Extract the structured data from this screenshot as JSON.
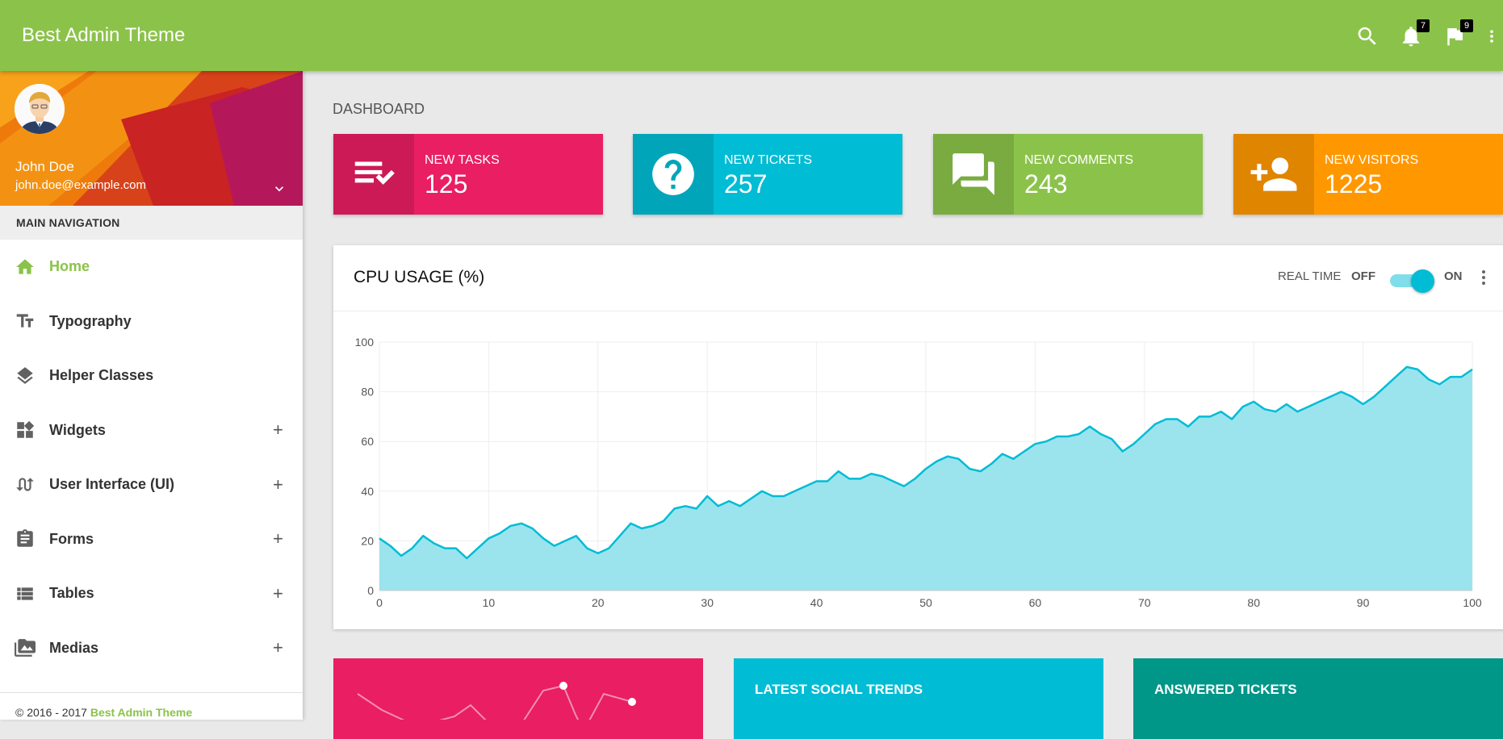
{
  "topbar": {
    "brand": "Best Admin Theme",
    "notifications_count": "7",
    "tasks_count": "9"
  },
  "user": {
    "name": "John Doe",
    "email": "john.doe@example.com"
  },
  "sidebar": {
    "header": "MAIN NAVIGATION",
    "items": [
      {
        "label": "Home",
        "icon": "home-icon",
        "active": true
      },
      {
        "label": "Typography",
        "icon": "text-fields-icon"
      },
      {
        "label": "Helper Classes",
        "icon": "layers-icon"
      },
      {
        "label": "Widgets",
        "icon": "widgets-icon",
        "expand": "+"
      },
      {
        "label": "User Interface (UI)",
        "icon": "swap-calls-icon",
        "expand": "+"
      },
      {
        "label": "Forms",
        "icon": "assignment-icon",
        "expand": "+"
      },
      {
        "label": "Tables",
        "icon": "view-list-icon",
        "expand": "+"
      },
      {
        "label": "Medias",
        "icon": "perm-media-icon",
        "expand": "+"
      }
    ],
    "footer_prefix": "© 2016 - 2017 ",
    "footer_link": "Best Admin Theme"
  },
  "page": {
    "title": "DASHBOARD"
  },
  "info_boxes": [
    {
      "label": "NEW TASKS",
      "value": "125",
      "color": "#e91e63",
      "icon": "playlist-check-icon"
    },
    {
      "label": "NEW TICKETS",
      "value": "257",
      "color": "#00bcd4",
      "icon": "help-icon"
    },
    {
      "label": "NEW COMMENTS",
      "value": "243",
      "color": "#8bc34a",
      "icon": "forum-icon"
    },
    {
      "label": "NEW VISITORS",
      "value": "1225",
      "color": "#ff9800",
      "icon": "person-add-icon"
    }
  ],
  "cpu_card": {
    "title": "CPU USAGE (%)",
    "realtime_label": "REAL TIME",
    "off_label": "OFF",
    "on_label": "ON",
    "realtime_on": true
  },
  "chart_data": {
    "type": "area",
    "title": "CPU USAGE (%)",
    "x": [
      0,
      1,
      2,
      3,
      4,
      5,
      6,
      7,
      8,
      9,
      10,
      11,
      12,
      13,
      14,
      15,
      16,
      17,
      18,
      19,
      20,
      21,
      22,
      23,
      24,
      25,
      26,
      27,
      28,
      29,
      30,
      31,
      32,
      33,
      34,
      35,
      36,
      37,
      38,
      39,
      40,
      41,
      42,
      43,
      44,
      45,
      46,
      47,
      48,
      49,
      50,
      51,
      52,
      53,
      54,
      55,
      56,
      57,
      58,
      59,
      60,
      61,
      62,
      63,
      64,
      65,
      66,
      67,
      68,
      69,
      70,
      71,
      72,
      73,
      74,
      75,
      76,
      77,
      78,
      79,
      80,
      81,
      82,
      83,
      84,
      85,
      86,
      87,
      88,
      89,
      90,
      91,
      92,
      93,
      94,
      95,
      96,
      97,
      98,
      99,
      100
    ],
    "values": [
      21,
      18,
      14,
      17,
      22,
      19,
      17,
      17,
      13,
      17,
      21,
      23,
      26,
      27,
      25,
      21,
      18,
      20,
      22,
      17,
      15,
      17,
      22,
      27,
      25,
      26,
      28,
      33,
      34,
      33,
      38,
      34,
      36,
      34,
      37,
      40,
      38,
      38,
      40,
      42,
      44,
      44,
      48,
      45,
      45,
      47,
      46,
      44,
      42,
      45,
      49,
      52,
      54,
      53,
      49,
      48,
      51,
      55,
      53,
      56,
      59,
      60,
      62,
      62,
      63,
      66,
      63,
      61,
      56,
      59,
      63,
      67,
      69,
      69,
      66,
      70,
      70,
      72,
      69,
      74,
      76,
      73,
      72,
      75,
      72,
      74,
      76,
      78,
      80,
      78,
      75,
      78,
      82,
      86,
      90,
      89,
      85,
      83,
      86,
      86,
      89
    ],
    "xlim": [
      0,
      100
    ],
    "ylim": [
      0,
      100
    ],
    "xticks": [
      0,
      10,
      20,
      30,
      40,
      50,
      60,
      70,
      80,
      90,
      100
    ],
    "yticks": [
      0,
      20,
      40,
      60,
      80,
      100
    ],
    "grid": true,
    "line_color": "#00bcd4",
    "fill_color": "#9be4ee"
  },
  "bottom_cards": [
    {
      "title": "",
      "color": "#e91e63"
    },
    {
      "title": "LATEST SOCIAL TRENDS",
      "color": "#00bcd4"
    },
    {
      "title": "ANSWERED TICKETS",
      "color": "#009688"
    }
  ]
}
